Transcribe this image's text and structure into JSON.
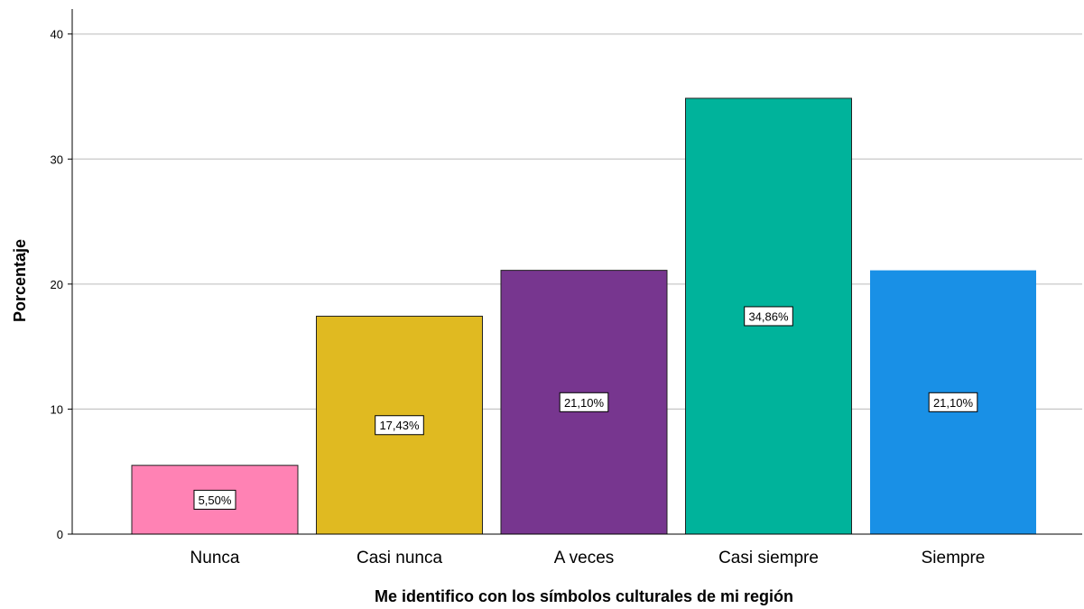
{
  "chart_data": {
    "type": "bar",
    "title": "",
    "xlabel": "Me identifico con los símbolos culturales de mi región",
    "ylabel": "Porcentaje",
    "categories": [
      "Nunca",
      "Casi nunca",
      "A veces",
      "Casi siempre",
      "Siempre"
    ],
    "values": [
      5.5,
      17.43,
      21.1,
      34.86,
      21.1
    ],
    "data_labels": [
      "5,50%",
      "17,43%",
      "21,10%",
      "34,86%",
      "21,10%"
    ],
    "colors": [
      "#ff82b4",
      "#e0ba21",
      "#77368f",
      "#00b39b",
      "#1990e6"
    ],
    "ylim": [
      0,
      42
    ],
    "yticks": [
      0,
      10,
      20,
      30,
      40
    ],
    "grid": true,
    "legend": "none"
  }
}
